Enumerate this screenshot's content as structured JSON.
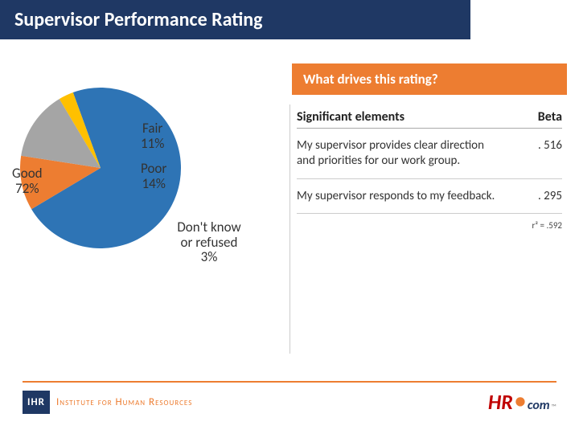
{
  "title": "Supervisor Performance Rating",
  "pie": {
    "type": "pie",
    "slices": [
      {
        "label": "Good",
        "value": 72,
        "color": "#2e74b5",
        "display": "Good\n72%"
      },
      {
        "label": "Fair",
        "value": 11,
        "color": "#ed7d31",
        "display": "Fair\n11%"
      },
      {
        "label": "Poor",
        "value": 14,
        "color": "#a5a5a5",
        "display": "Poor\n14%"
      },
      {
        "label": "Don't know or refused",
        "value": 3,
        "color": "#ffc000",
        "display": "Don't know\nor refused\n3%"
      }
    ],
    "start_angle_deg": -110,
    "background": "#ffffff"
  },
  "drives_heading": "What drives this rating?",
  "table": {
    "col_elements": "Significant elements",
    "col_beta": "Beta",
    "rows": [
      {
        "element": "My supervisor provides clear direction and priorities for our work group.",
        "beta": ". 516"
      },
      {
        "element": "My supervisor responds to my feedback.",
        "beta": ". 295"
      }
    ],
    "r2_note": "r² =  .592"
  },
  "footer": {
    "ihr_badge": "IHR",
    "ihr_text": "Institute for Human Resources",
    "hr_main": "HR",
    "hr_com": "com",
    "hr_tm": "™"
  },
  "colors": {
    "title_bg": "#1f3864",
    "accent": "#ed7d31",
    "divider": "#cccccc"
  }
}
